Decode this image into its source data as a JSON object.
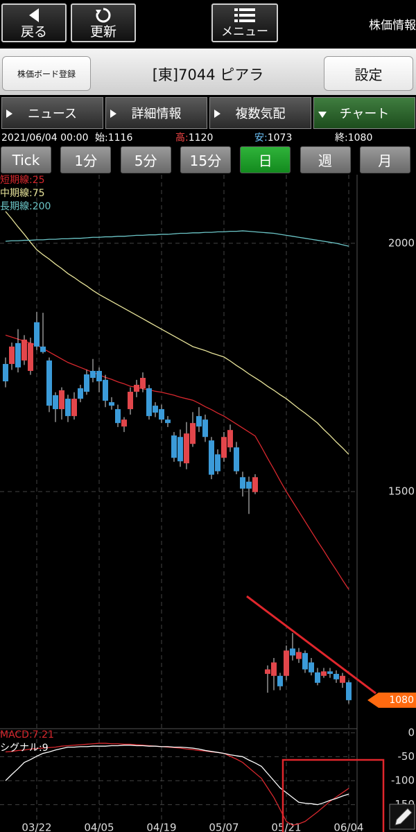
{
  "header": {
    "back": "戻る",
    "refresh": "更新",
    "menu": "メニュー",
    "title": "株価情報"
  },
  "toolbar": {
    "register": "株価ボード登録",
    "symbol": "[東]7044 ピアラ",
    "settings": "設定"
  },
  "tabs": [
    "ニュース",
    "詳細情報",
    "複数気配",
    "チャート"
  ],
  "quote": {
    "datetime": "2021/06/04 00:00",
    "items": [
      {
        "label": "始:",
        "value": 1116
      },
      {
        "label": "高:",
        "value": 1120
      },
      {
        "label": "安:",
        "value": 1073
      },
      {
        "label": "終:",
        "value": 1080
      }
    ]
  },
  "periods": [
    "Tick",
    "1分",
    "5分",
    "15分",
    "日",
    "週",
    "月"
  ],
  "chart_data": [
    {
      "type": "candlestick",
      "categories": [
        null,
        null,
        null,
        null,
        null,
        "03/22",
        null,
        null,
        null,
        null,
        null,
        null,
        null,
        null,
        null,
        "04/05",
        null,
        null,
        null,
        null,
        null,
        null,
        null,
        null,
        null,
        "04/19",
        null,
        null,
        null,
        null,
        null,
        null,
        null,
        null,
        null,
        "05/07",
        null,
        null,
        null,
        null,
        null,
        null,
        null,
        null,
        null,
        "05/21",
        null,
        null,
        null,
        null,
        null,
        null,
        null,
        null,
        null,
        "06/04"
      ],
      "open": [
        1757,
        1757,
        1799,
        1764,
        1743,
        1841,
        1792,
        1764,
        1694,
        1666,
        1687,
        1652,
        1708,
        1736,
        1743,
        1743,
        1725,
        1680,
        1666,
        1631,
        1666,
        1701,
        1708,
        1708,
        1673,
        1666,
        1645,
        1613,
        1610,
        1557,
        1596,
        1652,
        1645,
        1603,
        1575,
        1568,
        1589,
        1589,
        1529,
        1520,
        1499,
        null,
        1133,
        1129,
        1129,
        1129,
        1184,
        1163,
        1175,
        1156,
        1136,
        1129,
        1138,
        1133,
        1115,
        1116
      ],
      "high": [
        1770,
        1800,
        1827,
        1815,
        1810,
        1862,
        1860,
        1770,
        1700,
        1710,
        1695,
        1700,
        1715,
        1745,
        1767,
        1750,
        1735,
        1690,
        1675,
        1650,
        1710,
        1725,
        1740,
        1715,
        1680,
        1675,
        1652,
        1620,
        1625,
        1640,
        1660,
        1670,
        1655,
        1610,
        1585,
        1620,
        1635,
        1600,
        1540,
        1530,
        1535,
        null,
        1150,
        1165,
        1135,
        1190,
        1215,
        1185,
        1180,
        1165,
        1145,
        1145,
        1145,
        1140,
        1135,
        1120
      ],
      "low": [
        1710,
        1745,
        1740,
        1755,
        1735,
        1785,
        1778,
        1660,
        1640,
        1645,
        1640,
        1645,
        1680,
        1695,
        1720,
        1700,
        1670,
        1665,
        1630,
        1620,
        1655,
        1690,
        1700,
        1645,
        1650,
        1638,
        1630,
        1560,
        1550,
        1545,
        1590,
        1620,
        1600,
        1525,
        1535,
        1560,
        1580,
        1535,
        1490,
        1455,
        1495,
        null,
        1095,
        1100,
        1100,
        1120,
        1160,
        1155,
        1135,
        1130,
        1110,
        1125,
        1125,
        1115,
        1105,
        1073
      ],
      "close": [
        1722,
        1792,
        1750,
        1806,
        1799,
        1792,
        1781,
        1673,
        1666,
        1704,
        1652,
        1687,
        1687,
        1701,
        1729,
        1722,
        1683,
        1673,
        1638,
        1645,
        1701,
        1715,
        1729,
        1652,
        1659,
        1645,
        1638,
        1568,
        1561,
        1617,
        1638,
        1631,
        1610,
        1534,
        1541,
        1610,
        1624,
        1541,
        1506,
        1506,
        1529,
        null,
        1142,
        1156,
        1108,
        1180,
        1170,
        1177,
        1142,
        1136,
        1115,
        1138,
        1133,
        1122,
        1129,
        1080
      ],
      "up_color": "#e2464b",
      "down_color": "#3b9bd9",
      "overlays": [
        {
          "name": "短期線:25",
          "color": "#d8282e",
          "values": [
            1815,
            1811,
            1807,
            1803,
            1799,
            1795,
            1788,
            1781,
            1774,
            1767,
            1760,
            1755,
            1750,
            1745,
            1740,
            1735,
            1730,
            1726,
            1721,
            1717,
            1712,
            1710,
            1707,
            1705,
            1702,
            1700,
            1697,
            1694,
            1690,
            1687,
            1684,
            1678,
            1671,
            1665,
            1658,
            1652,
            1644,
            1636,
            1628,
            1620,
            1612,
            1590,
            1567,
            1545,
            1522,
            1500,
            1480,
            1460,
            1440,
            1420,
            1400,
            1381,
            1361,
            1342,
            1322,
            1303
          ]
        },
        {
          "name": "中期線:75",
          "color": "#e8e49a",
          "values": [
            2064,
            2049,
            2033,
            2018,
            2002,
            1987,
            1977,
            1968,
            1958,
            1949,
            1939,
            1931,
            1922,
            1914,
            1905,
            1897,
            1890,
            1883,
            1876,
            1869,
            1862,
            1855,
            1848,
            1841,
            1834,
            1827,
            1820,
            1813,
            1806,
            1799,
            1792,
            1788,
            1784,
            1779,
            1775,
            1771,
            1763,
            1754,
            1746,
            1737,
            1729,
            1721,
            1712,
            1704,
            1695,
            1687,
            1677,
            1667,
            1658,
            1648,
            1638,
            1625,
            1613,
            1600,
            1588,
            1575
          ]
        },
        {
          "name": "長期線:200",
          "color": "#6cc6c8",
          "values": [
            2004,
            2005,
            2005,
            2006,
            2006,
            2007,
            2007,
            2008,
            2008,
            2009,
            2009,
            2010,
            2010,
            2011,
            2012,
            2012,
            2013,
            2013,
            2014,
            2014,
            2015,
            2016,
            2016,
            2017,
            2017,
            2018,
            2018,
            2019,
            2020,
            2020,
            2021,
            2021,
            2022,
            2022,
            2023,
            2023,
            2024,
            2024,
            2025,
            2024,
            2023,
            2022,
            2021,
            2020,
            2018,
            2016,
            2014,
            2012,
            2010,
            2008,
            2006,
            2004,
            2002,
            2000,
            1997,
            1994
          ]
        }
      ],
      "ylim": [
        1024,
        2138
      ],
      "yticks": [
        1500,
        2000
      ],
      "grid": true,
      "last_price": 1080,
      "last_price_color": "#ff6a10"
    },
    {
      "type": "line",
      "series": [
        {
          "name": "MACD:7.21",
          "color": "#d8282e",
          "values": [
            -40,
            -39,
            -37,
            -36,
            -34,
            -33,
            -32,
            -31,
            -30,
            -28,
            -27,
            -26,
            -25,
            -24,
            -23,
            -22,
            -22,
            -23,
            -23,
            -24,
            -24,
            -25,
            -26,
            -27,
            -28,
            -29,
            -30,
            -31,
            -32,
            -34,
            -35,
            -37,
            -38,
            -40,
            -41,
            -43,
            -49,
            -55,
            -62,
            -73,
            -84,
            -95,
            -115,
            -135,
            -160,
            -185,
            -193,
            -190,
            -185,
            -175,
            -165,
            -154,
            -143,
            -134,
            -125,
            -116
          ]
        },
        {
          "name": "シグナル:9",
          "color": "#ffffff",
          "values": [
            -100,
            -87,
            -75,
            -62,
            -56,
            -49,
            -43,
            -40,
            -36,
            -33,
            -30,
            -30,
            -29,
            -29,
            -28,
            -28,
            -28,
            -27,
            -27,
            -26,
            -26,
            -27,
            -27,
            -28,
            -28,
            -29,
            -29,
            -30,
            -30,
            -31,
            -32,
            -34,
            -37,
            -39,
            -41,
            -43,
            -46,
            -48,
            -50,
            -57,
            -63,
            -70,
            -85,
            -100,
            -115,
            -125,
            -135,
            -145,
            -147,
            -148,
            -150,
            -146,
            -141,
            -137,
            -132,
            -128
          ]
        }
      ],
      "ylim": [
        -207,
        7
      ],
      "yticks": [
        0,
        -50,
        -100,
        -150
      ],
      "grid": true
    }
  ]
}
